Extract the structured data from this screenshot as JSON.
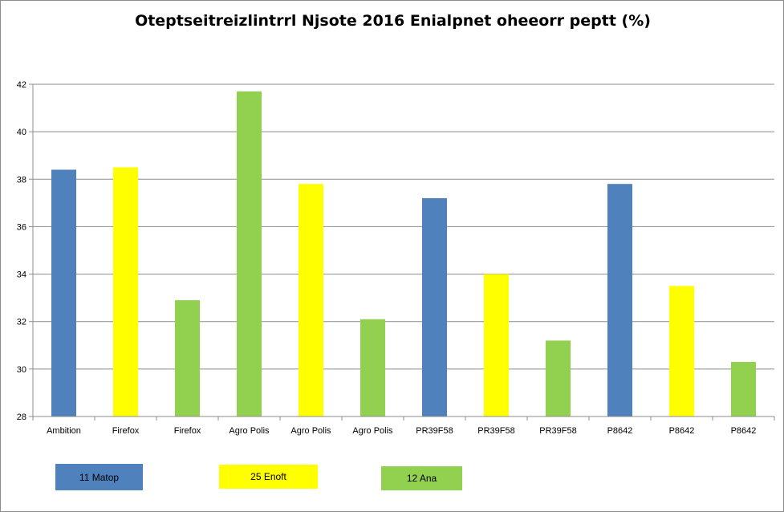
{
  "chart_data": {
    "type": "bar",
    "title": "Oteptseitreizlintrrl Njsote 2016 Enialpnet oheeorr peptt (%)",
    "xlabel": "",
    "ylabel": "",
    "ylim": [
      28,
      42
    ],
    "yticks": [
      28,
      30,
      32,
      34,
      36,
      38,
      40,
      42
    ],
    "grid": true,
    "legend_position": "bottom",
    "categories": [
      "Ambition",
      "Firefox",
      "Firefox",
      "Agro Polis",
      "Agro Polis",
      "Agro Polis",
      "PR39F58",
      "PR39F58",
      "PR39F58",
      "P8642",
      "P8642",
      "P8642"
    ],
    "values": [
      38.4,
      38.5,
      32.9,
      41.7,
      37.8,
      32.1,
      37.2,
      34.0,
      31.2,
      37.8,
      33.5,
      30.3
    ],
    "bar_series": [
      0,
      1,
      2,
      2,
      1,
      2,
      0,
      1,
      2,
      0,
      1,
      2
    ],
    "series": [
      {
        "name": "11 Matop",
        "color": "#4f81bd"
      },
      {
        "name": "25 Enoft",
        "color": "#ffff00"
      },
      {
        "name": "12 Ana",
        "color": "#92d050"
      }
    ]
  }
}
